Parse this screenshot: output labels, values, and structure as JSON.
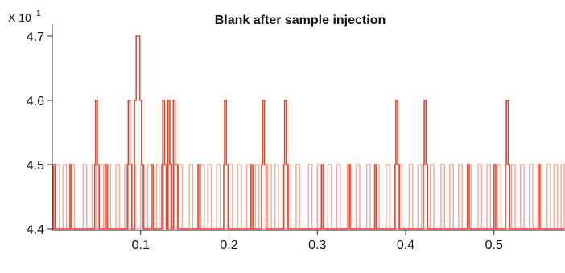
{
  "chart_data": {
    "type": "line",
    "title": "Blank after sample injection",
    "y_multiplier": {
      "prefix": "X 10",
      "exponent": "1"
    },
    "xlabel": "",
    "ylabel": "",
    "xlim": [
      0.0,
      0.58
    ],
    "ylim": [
      4.38,
      4.73
    ],
    "x_ticks": [
      "0.1",
      "0.2",
      "0.3",
      "0.4",
      "0.5"
    ],
    "y_ticks": [
      "4.4",
      "4.5",
      "4.6",
      "4.7"
    ],
    "grid": false,
    "baseline": 4.4,
    "series": [
      {
        "color": "#f0a99a",
        "values_note_free": true,
        "steps": [
          [
            0.0,
            4.4
          ],
          [
            0.003,
            4.5
          ],
          [
            0.008,
            4.4
          ],
          [
            0.012,
            4.5
          ],
          [
            0.016,
            4.4
          ],
          [
            0.021,
            4.5
          ],
          [
            0.025,
            4.4
          ],
          [
            0.035,
            4.5
          ],
          [
            0.039,
            4.4
          ],
          [
            0.045,
            4.5
          ],
          [
            0.05,
            4.4
          ],
          [
            0.055,
            4.5
          ],
          [
            0.058,
            4.4
          ],
          [
            0.063,
            4.5
          ],
          [
            0.066,
            4.4
          ],
          [
            0.072,
            4.5
          ],
          [
            0.076,
            4.4
          ],
          [
            0.082,
            4.5
          ],
          [
            0.086,
            4.4
          ],
          [
            0.09,
            4.5
          ],
          [
            0.094,
            4.4
          ],
          [
            0.1,
            4.5
          ],
          [
            0.104,
            4.4
          ],
          [
            0.108,
            4.5
          ],
          [
            0.112,
            4.4
          ],
          [
            0.118,
            4.5
          ],
          [
            0.121,
            4.4
          ],
          [
            0.126,
            4.5
          ],
          [
            0.13,
            4.4
          ],
          [
            0.134,
            4.5
          ],
          [
            0.138,
            4.4
          ],
          [
            0.143,
            4.5
          ],
          [
            0.147,
            4.4
          ],
          [
            0.155,
            4.5
          ],
          [
            0.159,
            4.4
          ],
          [
            0.168,
            4.5
          ],
          [
            0.172,
            4.4
          ],
          [
            0.176,
            4.5
          ],
          [
            0.18,
            4.4
          ],
          [
            0.186,
            4.5
          ],
          [
            0.19,
            4.4
          ],
          [
            0.2,
            4.5
          ],
          [
            0.204,
            4.4
          ],
          [
            0.21,
            4.5
          ],
          [
            0.214,
            4.4
          ],
          [
            0.22,
            4.5
          ],
          [
            0.224,
            4.4
          ],
          [
            0.23,
            4.5
          ],
          [
            0.234,
            4.4
          ],
          [
            0.244,
            4.5
          ],
          [
            0.248,
            4.4
          ],
          [
            0.252,
            4.5
          ],
          [
            0.256,
            4.4
          ],
          [
            0.266,
            4.5
          ],
          [
            0.27,
            4.4
          ],
          [
            0.276,
            4.5
          ],
          [
            0.28,
            4.4
          ],
          [
            0.29,
            4.5
          ],
          [
            0.294,
            4.4
          ],
          [
            0.3,
            4.5
          ],
          [
            0.304,
            4.4
          ],
          [
            0.312,
            4.5
          ],
          [
            0.316,
            4.4
          ],
          [
            0.322,
            4.5
          ],
          [
            0.326,
            4.4
          ],
          [
            0.334,
            4.5
          ],
          [
            0.338,
            4.4
          ],
          [
            0.344,
            4.5
          ],
          [
            0.348,
            4.4
          ],
          [
            0.356,
            4.5
          ],
          [
            0.36,
            4.4
          ],
          [
            0.366,
            4.5
          ],
          [
            0.37,
            4.4
          ],
          [
            0.378,
            4.5
          ],
          [
            0.382,
            4.4
          ],
          [
            0.392,
            4.5
          ],
          [
            0.396,
            4.4
          ],
          [
            0.404,
            4.5
          ],
          [
            0.408,
            4.4
          ],
          [
            0.414,
            4.5
          ],
          [
            0.418,
            4.4
          ],
          [
            0.428,
            4.5
          ],
          [
            0.432,
            4.4
          ],
          [
            0.44,
            4.5
          ],
          [
            0.444,
            4.4
          ],
          [
            0.45,
            4.5
          ],
          [
            0.454,
            4.4
          ],
          [
            0.46,
            4.5
          ],
          [
            0.464,
            4.4
          ],
          [
            0.47,
            4.5
          ],
          [
            0.474,
            4.4
          ],
          [
            0.482,
            4.5
          ],
          [
            0.486,
            4.4
          ],
          [
            0.492,
            4.5
          ],
          [
            0.496,
            4.4
          ],
          [
            0.504,
            4.5
          ],
          [
            0.508,
            4.4
          ],
          [
            0.52,
            4.5
          ],
          [
            0.524,
            4.4
          ],
          [
            0.53,
            4.5
          ],
          [
            0.534,
            4.4
          ],
          [
            0.54,
            4.5
          ],
          [
            0.544,
            4.4
          ],
          [
            0.55,
            4.5
          ],
          [
            0.554,
            4.4
          ],
          [
            0.56,
            4.5
          ],
          [
            0.564,
            4.4
          ],
          [
            0.568,
            4.5
          ],
          [
            0.572,
            4.4
          ],
          [
            0.576,
            4.5
          ],
          [
            0.58,
            4.4
          ]
        ]
      },
      {
        "color": "#e0452e",
        "steps": [
          [
            0.0,
            4.4
          ],
          [
            0.001,
            4.5
          ],
          [
            0.003,
            4.4
          ],
          [
            0.02,
            4.5
          ],
          [
            0.022,
            4.4
          ],
          [
            0.048,
            4.5
          ],
          [
            0.049,
            4.6
          ],
          [
            0.051,
            4.5
          ],
          [
            0.053,
            4.4
          ],
          [
            0.06,
            4.5
          ],
          [
            0.062,
            4.4
          ],
          [
            0.085,
            4.5
          ],
          [
            0.086,
            4.6
          ],
          [
            0.088,
            4.5
          ],
          [
            0.09,
            4.4
          ],
          [
            0.093,
            4.6
          ],
          [
            0.095,
            4.7
          ],
          [
            0.099,
            4.6
          ],
          [
            0.101,
            4.5
          ],
          [
            0.103,
            4.4
          ],
          [
            0.112,
            4.5
          ],
          [
            0.114,
            4.4
          ],
          [
            0.124,
            4.5
          ],
          [
            0.125,
            4.6
          ],
          [
            0.127,
            4.5
          ],
          [
            0.129,
            4.4
          ],
          [
            0.131,
            4.6
          ],
          [
            0.133,
            4.5
          ],
          [
            0.135,
            4.4
          ],
          [
            0.137,
            4.6
          ],
          [
            0.139,
            4.5
          ],
          [
            0.142,
            4.4
          ],
          [
            0.165,
            4.5
          ],
          [
            0.167,
            4.4
          ],
          [
            0.194,
            4.5
          ],
          [
            0.195,
            4.6
          ],
          [
            0.197,
            4.5
          ],
          [
            0.199,
            4.4
          ],
          [
            0.225,
            4.5
          ],
          [
            0.227,
            4.4
          ],
          [
            0.237,
            4.5
          ],
          [
            0.238,
            4.6
          ],
          [
            0.24,
            4.5
          ],
          [
            0.242,
            4.4
          ],
          [
            0.262,
            4.5
          ],
          [
            0.263,
            4.6
          ],
          [
            0.265,
            4.5
          ],
          [
            0.267,
            4.4
          ],
          [
            0.305,
            4.5
          ],
          [
            0.307,
            4.4
          ],
          [
            0.335,
            4.5
          ],
          [
            0.337,
            4.4
          ],
          [
            0.365,
            4.5
          ],
          [
            0.367,
            4.4
          ],
          [
            0.388,
            4.5
          ],
          [
            0.389,
            4.6
          ],
          [
            0.391,
            4.5
          ],
          [
            0.393,
            4.4
          ],
          [
            0.42,
            4.5
          ],
          [
            0.421,
            4.6
          ],
          [
            0.423,
            4.5
          ],
          [
            0.425,
            4.4
          ],
          [
            0.47,
            4.5
          ],
          [
            0.472,
            4.4
          ],
          [
            0.5,
            4.5
          ],
          [
            0.502,
            4.4
          ],
          [
            0.513,
            4.5
          ],
          [
            0.514,
            4.6
          ],
          [
            0.516,
            4.5
          ],
          [
            0.518,
            4.4
          ],
          [
            0.55,
            4.5
          ],
          [
            0.552,
            4.4
          ],
          [
            0.58,
            4.4
          ]
        ]
      }
    ]
  }
}
